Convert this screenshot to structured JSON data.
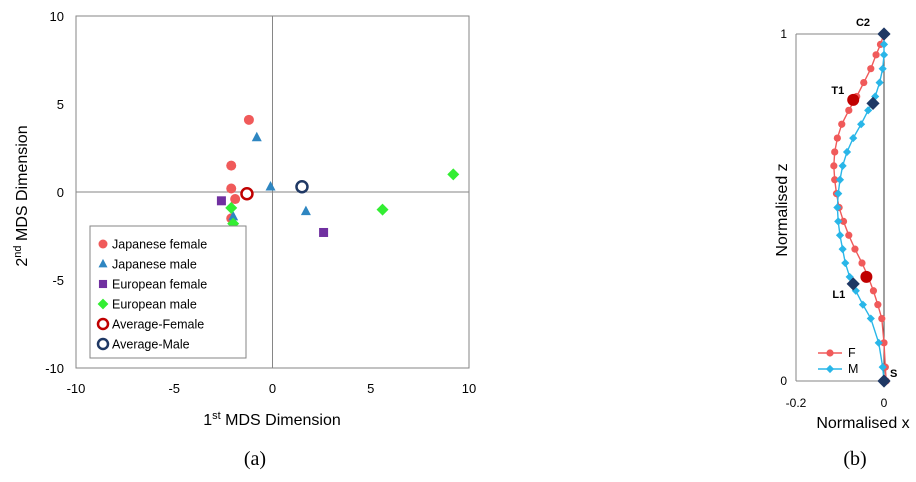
{
  "chart_data": [
    {
      "type": "scatter",
      "panel_label": "(a)",
      "xlabel": {
        "base": "1",
        "sup": "st",
        "rest": " MDS Dimension"
      },
      "ylabel": {
        "base": "2",
        "sup": "nd",
        "rest": " MDS Dimension"
      },
      "xlim": [
        -10,
        10
      ],
      "ylim": [
        -10,
        10
      ],
      "xticks": [
        "-10",
        "-5",
        "0",
        "5",
        "10"
      ],
      "yticks": [
        "-10",
        "-5",
        "0",
        "5",
        "10"
      ],
      "grid": false,
      "legend_position": "bottom-left",
      "series": [
        {
          "name": "Japanese female",
          "marker": "circle",
          "color": "#f05a5a",
          "points": [
            [
              -1.2,
              4.1
            ],
            [
              -2.1,
              1.5
            ],
            [
              -2.1,
              0.2
            ],
            [
              -1.9,
              -0.4
            ],
            [
              -2.1,
              -1.5
            ]
          ]
        },
        {
          "name": "Japanese male",
          "marker": "triangle",
          "color": "#2e86c1",
          "points": [
            [
              -0.8,
              3.1
            ],
            [
              -0.1,
              0.3
            ],
            [
              1.7,
              -1.1
            ],
            [
              -2.0,
              -1.4
            ]
          ]
        },
        {
          "name": "European female",
          "marker": "square",
          "color": "#7030a0",
          "points": [
            [
              -2.6,
              -0.5
            ],
            [
              2.6,
              -2.3
            ]
          ]
        },
        {
          "name": "European male",
          "marker": "diamond",
          "color": "#33ee33",
          "points": [
            [
              -2.1,
              -0.9
            ],
            [
              -2.0,
              -1.8
            ],
            [
              5.6,
              -1.0
            ],
            [
              9.2,
              1.0
            ]
          ]
        },
        {
          "name": "Average-Female",
          "marker": "open-circle",
          "color": "#c00000",
          "points": [
            [
              -1.3,
              -0.1
            ]
          ]
        },
        {
          "name": "Average-Male",
          "marker": "open-circle",
          "color": "#1f3864",
          "points": [
            [
              1.5,
              0.3
            ]
          ]
        }
      ]
    },
    {
      "type": "line",
      "panel_label": "(b)",
      "xlabel": "Normalised x",
      "ylabel": "Normalised z",
      "xlim": [
        -0.2,
        0
      ],
      "ylim": [
        0,
        1
      ],
      "xticks": [
        "-0.2",
        "0"
      ],
      "yticks": [
        "0",
        "1"
      ],
      "legend_position": "bottom-left",
      "series": [
        {
          "name": "F",
          "marker": "circle",
          "color": "#f05a5a",
          "points": [
            [
              0.005,
              0.0
            ],
            [
              0.003,
              0.04
            ],
            [
              0.0,
              0.11
            ],
            [
              -0.005,
              0.18
            ],
            [
              -0.014,
              0.22
            ],
            [
              -0.024,
              0.26
            ],
            [
              -0.036,
              0.3
            ],
            [
              -0.05,
              0.34
            ],
            [
              -0.066,
              0.38
            ],
            [
              -0.08,
              0.42
            ],
            [
              -0.092,
              0.46
            ],
            [
              -0.102,
              0.5
            ],
            [
              -0.108,
              0.54
            ],
            [
              -0.112,
              0.58
            ],
            [
              -0.114,
              0.62
            ],
            [
              -0.112,
              0.66
            ],
            [
              -0.106,
              0.7
            ],
            [
              -0.096,
              0.74
            ],
            [
              -0.08,
              0.78
            ],
            [
              -0.062,
              0.82
            ],
            [
              -0.046,
              0.86
            ],
            [
              -0.03,
              0.9
            ],
            [
              -0.018,
              0.94
            ],
            [
              -0.008,
              0.97
            ],
            [
              0.0,
              1.0
            ]
          ]
        },
        {
          "name": "M",
          "marker": "diamond",
          "color": "#29b6e8",
          "points": [
            [
              0.0,
              0.0
            ],
            [
              -0.003,
              0.04
            ],
            [
              -0.012,
              0.11
            ],
            [
              -0.03,
              0.18
            ],
            [
              -0.048,
              0.22
            ],
            [
              -0.064,
              0.26
            ],
            [
              -0.078,
              0.3
            ],
            [
              -0.088,
              0.34
            ],
            [
              -0.094,
              0.38
            ],
            [
              -0.1,
              0.42
            ],
            [
              -0.104,
              0.46
            ],
            [
              -0.106,
              0.5
            ],
            [
              -0.104,
              0.54
            ],
            [
              -0.1,
              0.58
            ],
            [
              -0.094,
              0.62
            ],
            [
              -0.084,
              0.66
            ],
            [
              -0.07,
              0.7
            ],
            [
              -0.052,
              0.74
            ],
            [
              -0.036,
              0.78
            ],
            [
              -0.02,
              0.82
            ],
            [
              -0.01,
              0.86
            ],
            [
              -0.003,
              0.9
            ],
            [
              0.0,
              0.94
            ],
            [
              0.0,
              0.97
            ],
            [
              0.0,
              1.0
            ]
          ]
        }
      ],
      "landmarks": [
        {
          "label": "C2",
          "series": "M",
          "marker": "diamond",
          "color": "#1f3864",
          "x": 0.0,
          "z": 1.0,
          "label_side": "left-top"
        },
        {
          "label": "T1",
          "series": "F",
          "marker": "circle",
          "color": "#c00000",
          "x": -0.07,
          "z": 0.81,
          "label_side": "left"
        },
        {
          "label": "T1",
          "series": "M",
          "marker": "diamond",
          "color": "#1f3864",
          "x": -0.025,
          "z": 0.8,
          "label_side": "none"
        },
        {
          "label": "L1",
          "series": "F",
          "marker": "circle",
          "color": "#c00000",
          "x": -0.04,
          "z": 0.3,
          "label_side": "none"
        },
        {
          "label": "L1",
          "series": "M",
          "marker": "diamond",
          "color": "#1f3864",
          "x": -0.07,
          "z": 0.28,
          "label_side": "left-bottom"
        },
        {
          "label": "S",
          "series": "M",
          "marker": "diamond",
          "color": "#1f3864",
          "x": 0.0,
          "z": 0.0,
          "label_side": "right-top"
        }
      ]
    }
  ]
}
